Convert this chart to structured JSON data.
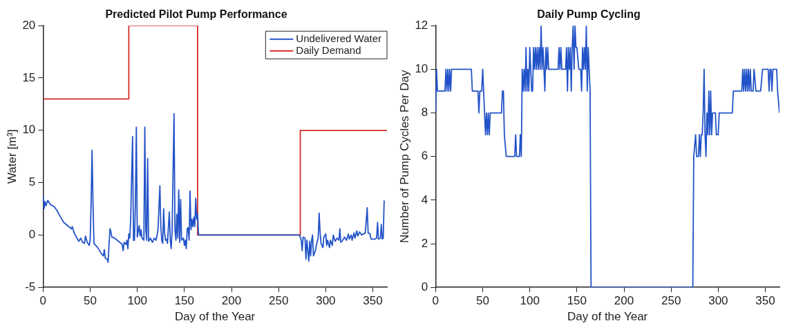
{
  "chart_data": [
    {
      "type": "line",
      "title": "Predicted Pilot Pump Performance",
      "xlabel": "Day of the Year",
      "ylabel": "Water [m³]",
      "xlim": [
        0,
        365
      ],
      "xticks": [
        0,
        50,
        100,
        150,
        200,
        250,
        300,
        350
      ],
      "ylim": [
        -5,
        20
      ],
      "yticks": [
        -5,
        0,
        5,
        10,
        15,
        20
      ],
      "grid": false,
      "legend": "top right",
      "series": [
        {
          "name": "Undelivered Water",
          "color": "#2152c8",
          "x": [
            0,
            1,
            2,
            3,
            5,
            8,
            12,
            15,
            18,
            22,
            26,
            30,
            31,
            33,
            36,
            38,
            40,
            42,
            44,
            45,
            47,
            49,
            50,
            51,
            52,
            53,
            54,
            56,
            58,
            60,
            62,
            64,
            65,
            66,
            68,
            69,
            70,
            71,
            72,
            73,
            76,
            80,
            84,
            85,
            86,
            88,
            89,
            90,
            91,
            92,
            93,
            95,
            96,
            97,
            98,
            99,
            100,
            102,
            103,
            104,
            105,
            107,
            108,
            109,
            110,
            111,
            112,
            114,
            116,
            118,
            120,
            122,
            124,
            125,
            126,
            127,
            128,
            129,
            130,
            131,
            132,
            134,
            135,
            136,
            137,
            139,
            140,
            141,
            142,
            143,
            144,
            145,
            146,
            147,
            149,
            150,
            151,
            152,
            153,
            154,
            155,
            156,
            157,
            158,
            159,
            160,
            161,
            162,
            163,
            164,
            165,
            272,
            273,
            274,
            275,
            276,
            278,
            279,
            280,
            282,
            283,
            284,
            285,
            286,
            287,
            289,
            290,
            292,
            293,
            294,
            295,
            297,
            298,
            300,
            301,
            302,
            304,
            305,
            307,
            308,
            310,
            312,
            314,
            315,
            316,
            318,
            320,
            322,
            324,
            325,
            327,
            328,
            330,
            331,
            333,
            334,
            336,
            338,
            340,
            342,
            344,
            345,
            347,
            348,
            352,
            354,
            355,
            356,
            358,
            359,
            360,
            361,
            362
          ],
          "values": [
            3.8,
            2.5,
            3.2,
            2.8,
            3.3,
            2.9,
            2.7,
            2.3,
            1.8,
            1.2,
            0.9,
            0.6,
            0.8,
            0.2,
            -0.3,
            -0.6,
            -0.3,
            -0.7,
            -0.8,
            -0.1,
            -0.7,
            -1.0,
            -0.5,
            3,
            8.1,
            3,
            -0.8,
            -1.0,
            -1.2,
            -1.5,
            -1.8,
            -2.0,
            -1.4,
            -2.2,
            -2.3,
            -2.6,
            -1,
            0.6,
            0.3,
            -0.2,
            -0.3,
            -0.6,
            -0.9,
            -1.5,
            -0.7,
            -0.9,
            -0.5,
            -1.3,
            0.1,
            -0.3,
            1.5,
            9.4,
            -0.5,
            -0.5,
            3,
            10.3,
            -0.2,
            0.9,
            -0.1,
            0.5,
            -0.3,
            -0.5,
            10.3,
            0.5,
            -0.5,
            7.3,
            -0.6,
            -0.3,
            -0.7,
            -0.3,
            -0.5,
            0.5,
            4.7,
            0.8,
            -0.5,
            -0.8,
            2.5,
            0.2,
            -0.5,
            -0.4,
            -0.8,
            2.2,
            -0.5,
            -1.3,
            0.5,
            11.6,
            0.5,
            -0.5,
            2.0,
            -0.3,
            4.3,
            -0.7,
            3.4,
            -0.5,
            -0.3,
            -1.0,
            -0.5,
            -1.3,
            0.6,
            0.7,
            -0.5,
            4.2,
            0.5,
            1.5,
            0.8,
            1.7,
            0.8,
            3.5,
            1.5,
            2.0,
            0,
            0,
            -0.2,
            -0.5,
            -1.5,
            -0.2,
            -0.3,
            -2.3,
            -0.5,
            -2.5,
            -0.6,
            -2.0,
            -0.5,
            0.0,
            -2.0,
            -1.5,
            -1.0,
            -0.3,
            2.1,
            0.3,
            -0.8,
            -1.2,
            -0.2,
            0.1,
            -1.0,
            -0.5,
            -1.2,
            -0.5,
            -1.0,
            0.0,
            -0.6,
            -0.3,
            -0.5,
            0.6,
            -0.7,
            -0.5,
            -0.2,
            -0.5,
            0.1,
            -0.4,
            0.0,
            -0.5,
            0.2,
            -0.3,
            0.4,
            -0.1,
            0.3,
            0.0,
            0.1,
            0.2,
            2.6,
            0.2,
            0.1,
            -0.4,
            -0.4,
            -0.3,
            1.2,
            -0.4,
            -0.3,
            1.0,
            -0.4,
            -0.3,
            3.3
          ]
        },
        {
          "name": "Daily Demand",
          "color": "#d62a2a",
          "x": [
            0,
            91,
            91,
            164,
            164,
            273,
            273,
            365
          ],
          "values": [
            13,
            13,
            20,
            20,
            0,
            0,
            10,
            10
          ]
        }
      ]
    },
    {
      "type": "line",
      "title": "Daily Pump Cycling",
      "xlabel": "Day of the Year",
      "ylabel": "Number of Pump Cycles Per Day",
      "xlim": [
        0,
        365
      ],
      "xticks": [
        0,
        50,
        100,
        150,
        200,
        250,
        300,
        350
      ],
      "ylim": [
        0,
        12
      ],
      "yticks": [
        0,
        2,
        4,
        6,
        8,
        10,
        12
      ],
      "grid": false,
      "legend": false,
      "series": [
        {
          "color": "#2152c8",
          "x": [
            0,
            1,
            2,
            10,
            11,
            12,
            13,
            14,
            15,
            16,
            17,
            30,
            38,
            39,
            45,
            46,
            47,
            49,
            50,
            51,
            52,
            53,
            54,
            55,
            56,
            57,
            58,
            70,
            71,
            72,
            73,
            75,
            84,
            85,
            86,
            89,
            90,
            91,
            92,
            93,
            94,
            95,
            96,
            97,
            98,
            99,
            100,
            101,
            102,
            103,
            104,
            105,
            106,
            107,
            108,
            109,
            110,
            111,
            112,
            113,
            114,
            115,
            116,
            117,
            118,
            119,
            120,
            130,
            131,
            132,
            133,
            134,
            138,
            139,
            140,
            141,
            142,
            143,
            144,
            145,
            146,
            147,
            148,
            149,
            150,
            152,
            154,
            155,
            156,
            157,
            158,
            159,
            160,
            161,
            162,
            163,
            164,
            165,
            273,
            274,
            276,
            277,
            279,
            280,
            281,
            282,
            283,
            284,
            285,
            286,
            287,
            288,
            289,
            290,
            291,
            292,
            293,
            294,
            297,
            298,
            300,
            301,
            315,
            316,
            325,
            326,
            327,
            328,
            329,
            330,
            331,
            332,
            333,
            334,
            335,
            337,
            338,
            340,
            345,
            347,
            353,
            354,
            355,
            356,
            357,
            358,
            360,
            362,
            363,
            365
          ],
          "values": [
            8,
            10,
            9,
            9,
            10,
            9,
            10,
            9,
            10,
            9,
            10,
            10,
            10,
            9,
            9,
            8,
            9,
            9,
            10,
            9,
            8,
            7,
            8,
            7,
            8,
            7,
            8,
            8,
            9,
            9,
            7,
            6,
            6,
            7,
            6,
            6,
            7,
            6,
            10,
            9,
            10,
            9,
            11,
            9,
            10,
            9,
            11,
            10,
            9,
            9,
            11,
            10,
            11,
            10,
            11,
            10,
            11,
            10,
            12,
            10,
            11,
            10,
            9,
            11,
            10,
            11,
            10,
            10,
            11,
            10,
            11,
            10,
            10,
            11,
            9,
            11,
            10,
            11,
            9,
            11,
            12,
            10,
            12,
            11,
            11,
            10,
            10,
            9,
            11,
            10,
            11,
            10,
            12,
            9,
            11,
            10,
            9,
            0,
            0,
            6,
            7,
            6,
            6,
            7,
            6,
            7,
            7,
            8,
            10,
            7,
            6,
            8,
            7,
            9,
            7,
            9,
            7,
            8,
            8,
            7,
            7,
            8,
            8,
            9,
            9,
            10,
            9,
            10,
            9,
            10,
            9,
            10,
            9,
            10,
            9,
            9,
            10,
            9,
            9,
            10,
            10,
            9,
            10,
            10,
            9,
            10,
            10,
            10,
            9,
            8
          ]
        }
      ]
    }
  ]
}
